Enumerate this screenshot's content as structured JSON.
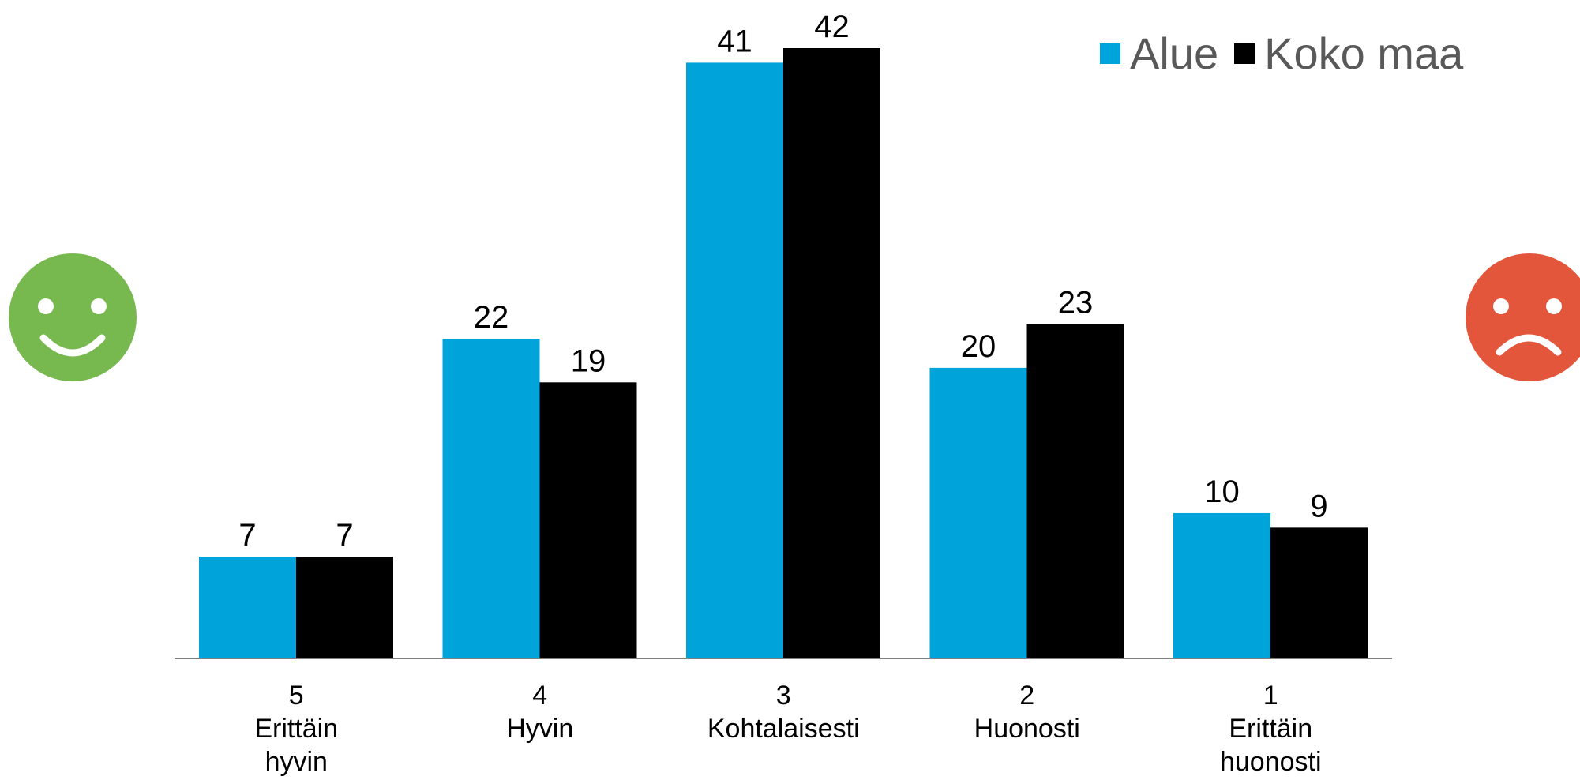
{
  "chart_data": {
    "type": "bar",
    "categories": [
      {
        "number": "5",
        "label_lines": [
          "Erittäin",
          "hyvin"
        ]
      },
      {
        "number": "4",
        "label_lines": [
          "Hyvin"
        ]
      },
      {
        "number": "3",
        "label_lines": [
          "Kohtalaisesti"
        ]
      },
      {
        "number": "2",
        "label_lines": [
          "Huonosti"
        ]
      },
      {
        "number": "1",
        "label_lines": [
          "Erittäin",
          "huonosti"
        ]
      }
    ],
    "series": [
      {
        "name": "Alue",
        "color": "#00a3da",
        "values": [
          7,
          22,
          41,
          20,
          10
        ]
      },
      {
        "name": "Koko maa",
        "color": "#000000",
        "values": [
          7,
          19,
          42,
          23,
          9
        ]
      }
    ],
    "ylim": [
      0,
      42
    ],
    "grid": false,
    "legend_position": "top-right",
    "data_labels": true
  },
  "decorations": {
    "left_icon": {
      "name": "smiley-happy-icon",
      "color": "#78b94f"
    },
    "right_icon": {
      "name": "smiley-sad-icon",
      "color": "#e4563b"
    }
  }
}
